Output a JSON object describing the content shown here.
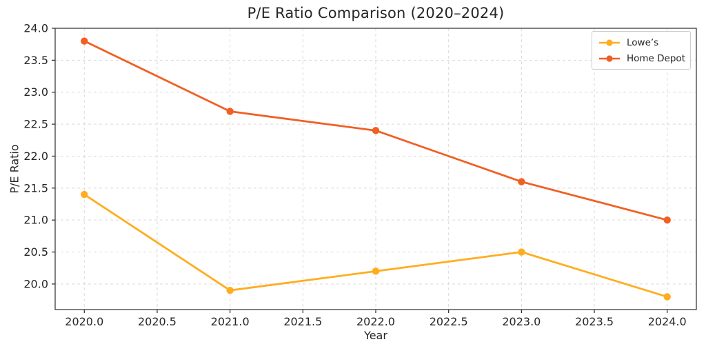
{
  "chart_data": {
    "type": "line",
    "title": "P/E Ratio Comparison (2020–2024)",
    "xlabel": "Year",
    "ylabel": "P/E Ratio",
    "x": [
      2020,
      2021,
      2022,
      2023,
      2024
    ],
    "series": [
      {
        "name": "Lowe’s",
        "values": [
          21.4,
          19.9,
          20.2,
          20.5,
          19.8
        ],
        "color": "#FFAD1F"
      },
      {
        "name": "Home Depot",
        "values": [
          23.8,
          22.7,
          22.4,
          21.6,
          21.0
        ],
        "color": "#F15F22"
      }
    ],
    "xlim": [
      2019.8,
      2024.2
    ],
    "ylim": [
      19.6,
      24.0
    ],
    "xticks": [
      2020.0,
      2020.5,
      2021.0,
      2021.5,
      2022.0,
      2022.5,
      2023.0,
      2023.5,
      2024.0
    ],
    "xtick_labels": [
      "2020.0",
      "2020.5",
      "2021.0",
      "2021.5",
      "2022.0",
      "2022.5",
      "2023.0",
      "2023.5",
      "2024.0"
    ],
    "yticks": [
      20.0,
      20.5,
      21.0,
      21.5,
      22.0,
      22.5,
      23.0,
      23.5,
      24.0
    ],
    "ytick_labels": [
      "20.0",
      "20.5",
      "21.0",
      "21.5",
      "22.0",
      "22.5",
      "23.0",
      "23.5",
      "24.0"
    ],
    "grid": "dashed",
    "legend_position": "top-right"
  },
  "colors": {
    "background": "#ffffff",
    "grid": "#d9d9d9",
    "axis": "#2b2b2b",
    "text": "#262626",
    "legend_border": "#cccccc"
  }
}
